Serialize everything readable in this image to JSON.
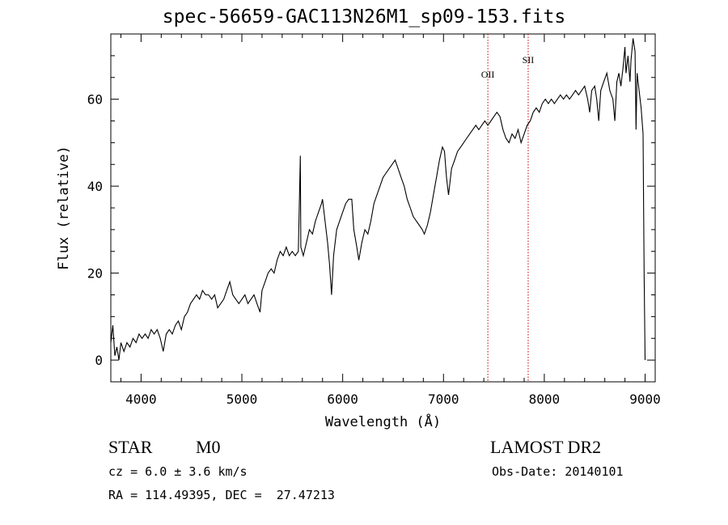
{
  "chart_data": {
    "type": "line",
    "title": "spec-56659-GAC113N26M1_sp09-153.fits",
    "xlabel": "Wavelength (Å)",
    "ylabel": "Flux (relative)",
    "xlim": [
      3700,
      9100
    ],
    "ylim": [
      -5,
      75
    ],
    "x_ticks": [
      4000,
      5000,
      6000,
      7000,
      8000,
      9000
    ],
    "y_ticks": [
      0,
      20,
      40,
      60
    ],
    "grid": false,
    "series": [
      {
        "points": [
          [
            3700,
            4
          ],
          [
            3720,
            8
          ],
          [
            3740,
            1
          ],
          [
            3760,
            3
          ],
          [
            3780,
            0
          ],
          [
            3800,
            4
          ],
          [
            3830,
            2
          ],
          [
            3860,
            4
          ],
          [
            3890,
            3
          ],
          [
            3920,
            5
          ],
          [
            3950,
            4
          ],
          [
            3980,
            6
          ],
          [
            4010,
            5
          ],
          [
            4040,
            6
          ],
          [
            4070,
            5
          ],
          [
            4100,
            7
          ],
          [
            4130,
            6
          ],
          [
            4160,
            7
          ],
          [
            4190,
            5
          ],
          [
            4220,
            2
          ],
          [
            4250,
            6
          ],
          [
            4280,
            7
          ],
          [
            4310,
            6
          ],
          [
            4340,
            8
          ],
          [
            4370,
            9
          ],
          [
            4400,
            7
          ],
          [
            4430,
            10
          ],
          [
            4460,
            11
          ],
          [
            4490,
            13
          ],
          [
            4520,
            14
          ],
          [
            4550,
            15
          ],
          [
            4580,
            14
          ],
          [
            4610,
            16
          ],
          [
            4640,
            15
          ],
          [
            4670,
            15
          ],
          [
            4700,
            14
          ],
          [
            4730,
            15
          ],
          [
            4760,
            12
          ],
          [
            4790,
            13
          ],
          [
            4820,
            14
          ],
          [
            4850,
            16
          ],
          [
            4880,
            18
          ],
          [
            4910,
            15
          ],
          [
            4940,
            14
          ],
          [
            4970,
            13
          ],
          [
            5000,
            14
          ],
          [
            5030,
            15
          ],
          [
            5060,
            13
          ],
          [
            5090,
            14
          ],
          [
            5120,
            15
          ],
          [
            5150,
            13
          ],
          [
            5180,
            11
          ],
          [
            5200,
            16
          ],
          [
            5230,
            18
          ],
          [
            5260,
            20
          ],
          [
            5290,
            21
          ],
          [
            5320,
            20
          ],
          [
            5350,
            23
          ],
          [
            5380,
            25
          ],
          [
            5410,
            24
          ],
          [
            5440,
            26
          ],
          [
            5470,
            24
          ],
          [
            5500,
            25
          ],
          [
            5530,
            24
          ],
          [
            5560,
            25
          ],
          [
            5580,
            47
          ],
          [
            5585,
            26
          ],
          [
            5610,
            24
          ],
          [
            5640,
            27
          ],
          [
            5670,
            30
          ],
          [
            5700,
            29
          ],
          [
            5730,
            32
          ],
          [
            5760,
            34
          ],
          [
            5790,
            36
          ],
          [
            5800,
            37
          ],
          [
            5820,
            33
          ],
          [
            5850,
            27
          ],
          [
            5870,
            22
          ],
          [
            5890,
            15
          ],
          [
            5910,
            24
          ],
          [
            5940,
            30
          ],
          [
            5970,
            32
          ],
          [
            6000,
            34
          ],
          [
            6030,
            36
          ],
          [
            6060,
            37
          ],
          [
            6090,
            37
          ],
          [
            6110,
            30
          ],
          [
            6140,
            26
          ],
          [
            6160,
            23
          ],
          [
            6190,
            27
          ],
          [
            6220,
            30
          ],
          [
            6250,
            29
          ],
          [
            6280,
            32
          ],
          [
            6310,
            36
          ],
          [
            6340,
            38
          ],
          [
            6370,
            40
          ],
          [
            6400,
            42
          ],
          [
            6430,
            43
          ],
          [
            6460,
            44
          ],
          [
            6490,
            45
          ],
          [
            6520,
            46
          ],
          [
            6550,
            44
          ],
          [
            6580,
            42
          ],
          [
            6610,
            40
          ],
          [
            6640,
            37
          ],
          [
            6670,
            35
          ],
          [
            6700,
            33
          ],
          [
            6730,
            32
          ],
          [
            6760,
            31
          ],
          [
            6790,
            30
          ],
          [
            6810,
            29
          ],
          [
            6840,
            31
          ],
          [
            6870,
            34
          ],
          [
            6900,
            38
          ],
          [
            6930,
            42
          ],
          [
            6960,
            46
          ],
          [
            6990,
            49
          ],
          [
            7010,
            48
          ],
          [
            7030,
            42
          ],
          [
            7050,
            38
          ],
          [
            7080,
            44
          ],
          [
            7110,
            46
          ],
          [
            7140,
            48
          ],
          [
            7170,
            49
          ],
          [
            7200,
            50
          ],
          [
            7230,
            51
          ],
          [
            7260,
            52
          ],
          [
            7290,
            53
          ],
          [
            7320,
            54
          ],
          [
            7350,
            53
          ],
          [
            7380,
            54
          ],
          [
            7410,
            55
          ],
          [
            7440,
            54
          ],
          [
            7470,
            55
          ],
          [
            7500,
            56
          ],
          [
            7530,
            57
          ],
          [
            7560,
            56
          ],
          [
            7590,
            53
          ],
          [
            7620,
            51
          ],
          [
            7650,
            50
          ],
          [
            7680,
            52
          ],
          [
            7710,
            51
          ],
          [
            7740,
            53
          ],
          [
            7770,
            50
          ],
          [
            7800,
            52
          ],
          [
            7830,
            54
          ],
          [
            7860,
            55
          ],
          [
            7890,
            57
          ],
          [
            7920,
            58
          ],
          [
            7950,
            57
          ],
          [
            7980,
            59
          ],
          [
            8010,
            60
          ],
          [
            8040,
            59
          ],
          [
            8070,
            60
          ],
          [
            8100,
            59
          ],
          [
            8130,
            60
          ],
          [
            8160,
            61
          ],
          [
            8190,
            60
          ],
          [
            8220,
            61
          ],
          [
            8250,
            60
          ],
          [
            8280,
            61
          ],
          [
            8310,
            62
          ],
          [
            8340,
            61
          ],
          [
            8370,
            62
          ],
          [
            8400,
            63
          ],
          [
            8430,
            60
          ],
          [
            8450,
            57
          ],
          [
            8470,
            62
          ],
          [
            8500,
            63
          ],
          [
            8520,
            60
          ],
          [
            8540,
            55
          ],
          [
            8560,
            62
          ],
          [
            8590,
            64
          ],
          [
            8620,
            66
          ],
          [
            8650,
            62
          ],
          [
            8680,
            60
          ],
          [
            8700,
            55
          ],
          [
            8720,
            64
          ],
          [
            8740,
            66
          ],
          [
            8760,
            63
          ],
          [
            8780,
            67
          ],
          [
            8800,
            72
          ],
          [
            8810,
            66
          ],
          [
            8830,
            70
          ],
          [
            8850,
            64
          ],
          [
            8860,
            69
          ],
          [
            8880,
            74
          ],
          [
            8900,
            71
          ],
          [
            8910,
            53
          ],
          [
            8920,
            66
          ],
          [
            8940,
            62
          ],
          [
            8960,
            58
          ],
          [
            8980,
            52
          ],
          [
            8990,
            20
          ],
          [
            9000,
            0
          ]
        ]
      }
    ],
    "vlines": [
      {
        "x": 7440,
        "label": "OII",
        "color": "#c00000"
      },
      {
        "x": 7840,
        "label": "SII",
        "color": "#c00000"
      }
    ]
  },
  "info": {
    "object_class": "STAR",
    "subclass": "M0",
    "survey": "LAMOST DR2",
    "cz": "cz = 6.0 ± 3.6 km/s",
    "obs_date": "Obs-Date: 20140101",
    "coords": "RA = 114.49395, DEC =  27.47213"
  },
  "colors": {
    "line": "#000000",
    "marker": "#c00000"
  }
}
